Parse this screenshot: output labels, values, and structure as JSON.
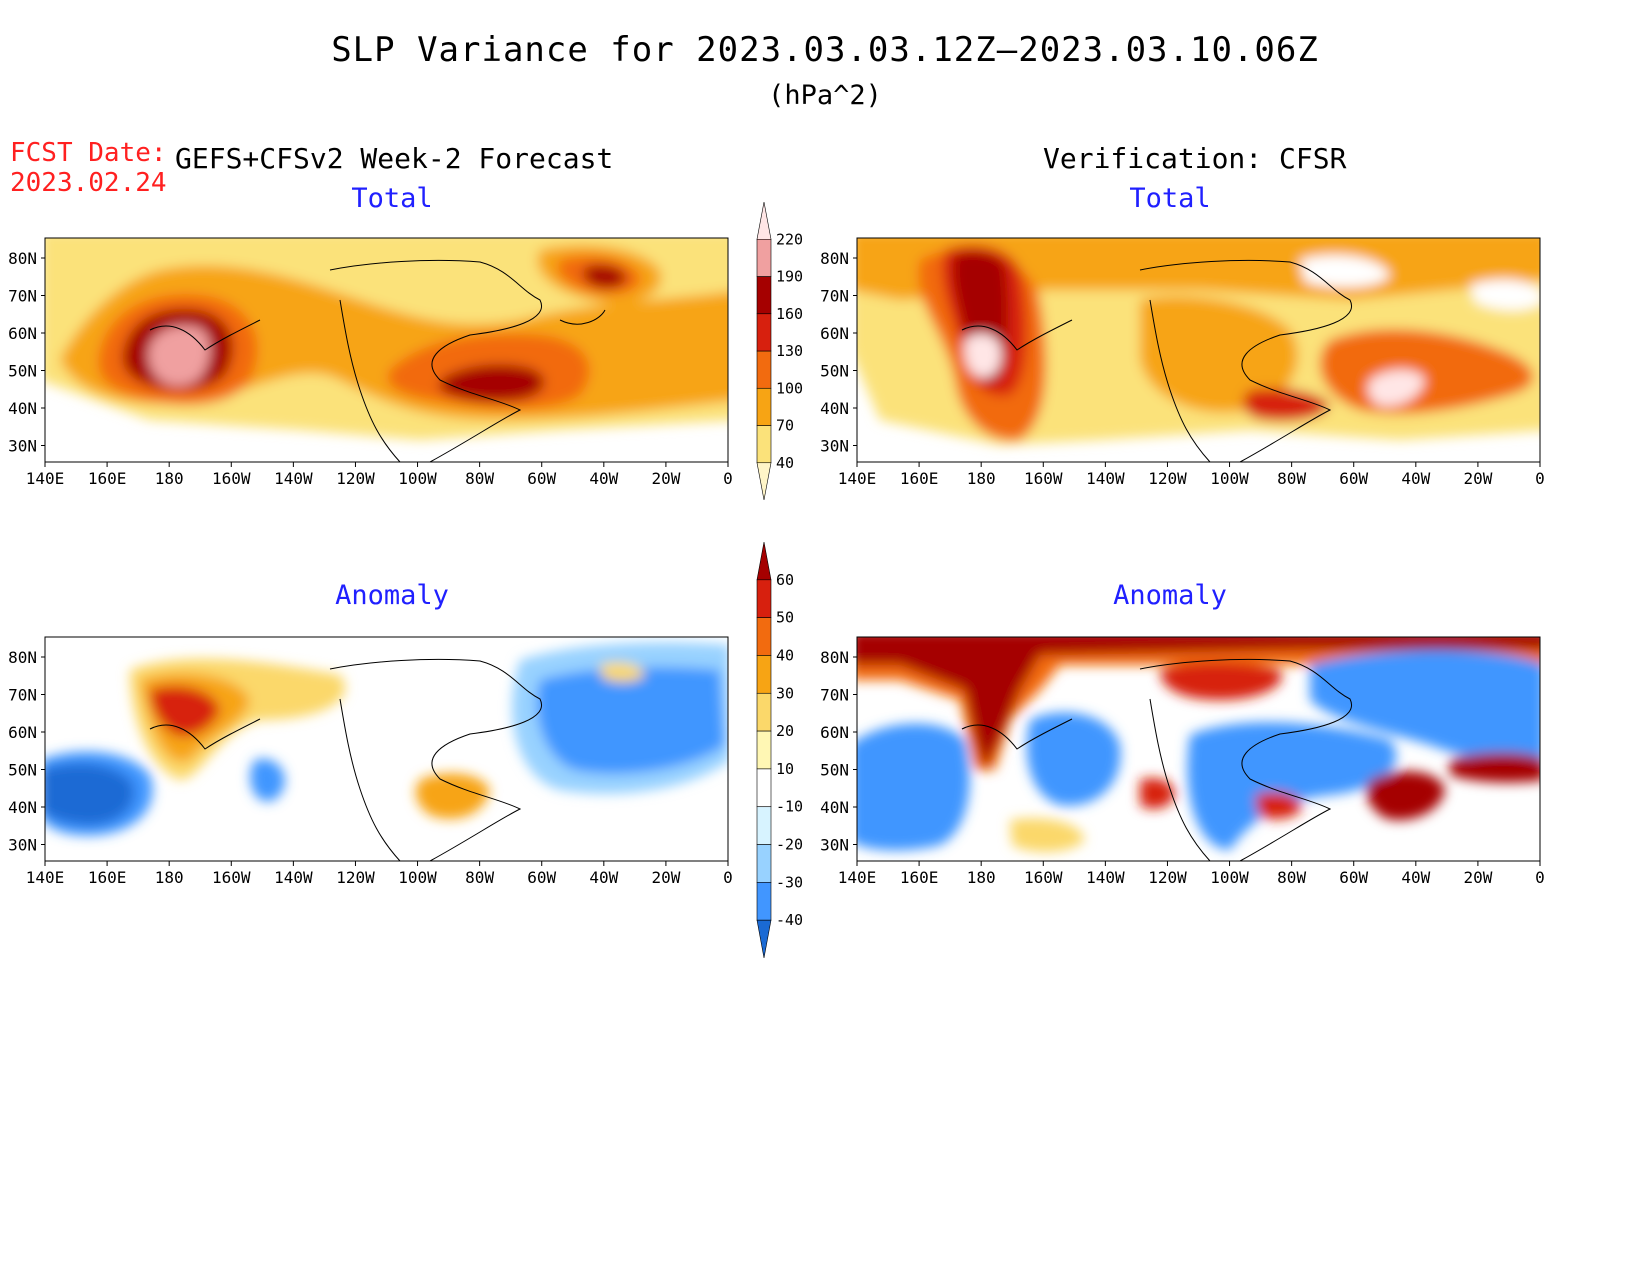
{
  "title": "SLP Variance for 2023.03.03.12Z—2023.03.10.06Z",
  "subtitle": "(hPa^2)",
  "fcst_date_label": "FCST Date:",
  "fcst_date": "2023.02.24",
  "left_header": "GEFS+CFSv2 Week-2 Forecast",
  "right_header": "Verification: CFSR",
  "panels": {
    "fcst_total": "Total",
    "fcst_anomaly": "Anomaly",
    "verif_total": "Total",
    "verif_anomaly": "Anomaly"
  },
  "lat_labels": [
    "80N",
    "70N",
    "60N",
    "50N",
    "40N",
    "30N"
  ],
  "lon_labels": [
    "140E",
    "160E",
    "180",
    "160W",
    "140W",
    "120W",
    "100W",
    "80W",
    "60W",
    "40W",
    "20W",
    "0"
  ],
  "total_colorbar": {
    "levels": [
      "40",
      "70",
      "100",
      "130",
      "160",
      "190",
      "220"
    ],
    "colors": [
      "#fff5c8",
      "#fbe27a",
      "#f7a414",
      "#f26b0f",
      "#d7200e",
      "#a50000",
      "#f0a0a0",
      "#ffe6e6"
    ]
  },
  "anomaly_colorbar": {
    "levels": [
      "60",
      "50",
      "40",
      "30",
      "20",
      "10",
      "-10",
      "-20",
      "-30",
      "-40"
    ],
    "colors": [
      "#a50000",
      "#d7200e",
      "#f26b0f",
      "#f7a414",
      "#fbd86a",
      "#fff7b4",
      "#ffffff",
      "#d7f3ff",
      "#98d2ff",
      "#4196ff",
      "#1a6ad4"
    ]
  }
}
